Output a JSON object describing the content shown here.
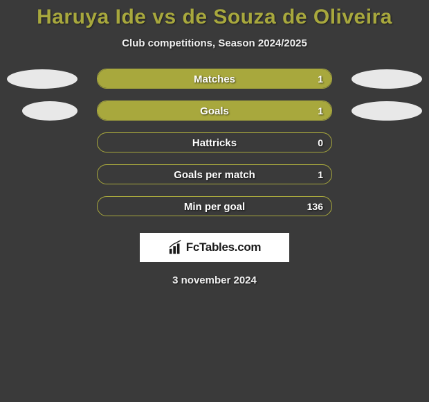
{
  "title": "Haruya Ide vs de Souza de Oliveira",
  "subtitle": "Club competitions, Season 2024/2025",
  "background_color": "#3a3a3a",
  "accent_color": "#a8a83d",
  "ellipse_color": "#e8e8e8",
  "text_color": "#f0f0f0",
  "stats": [
    {
      "label": "Matches",
      "value": "1",
      "fill_percent": 100,
      "show_ellipses": true,
      "left_ellipse_width": 102,
      "right_ellipse_width": 102
    },
    {
      "label": "Goals",
      "value": "1",
      "fill_percent": 100,
      "show_ellipses": true,
      "left_ellipse_width": 80,
      "right_ellipse_width": 102
    },
    {
      "label": "Hattricks",
      "value": "0",
      "fill_percent": 0,
      "show_ellipses": false
    },
    {
      "label": "Goals per match",
      "value": "1",
      "fill_percent": 0,
      "show_ellipses": false
    },
    {
      "label": "Min per goal",
      "value": "136",
      "fill_percent": 0,
      "show_ellipses": false
    }
  ],
  "logo": {
    "text": "FcTables.com"
  },
  "date": "3 november 2024"
}
